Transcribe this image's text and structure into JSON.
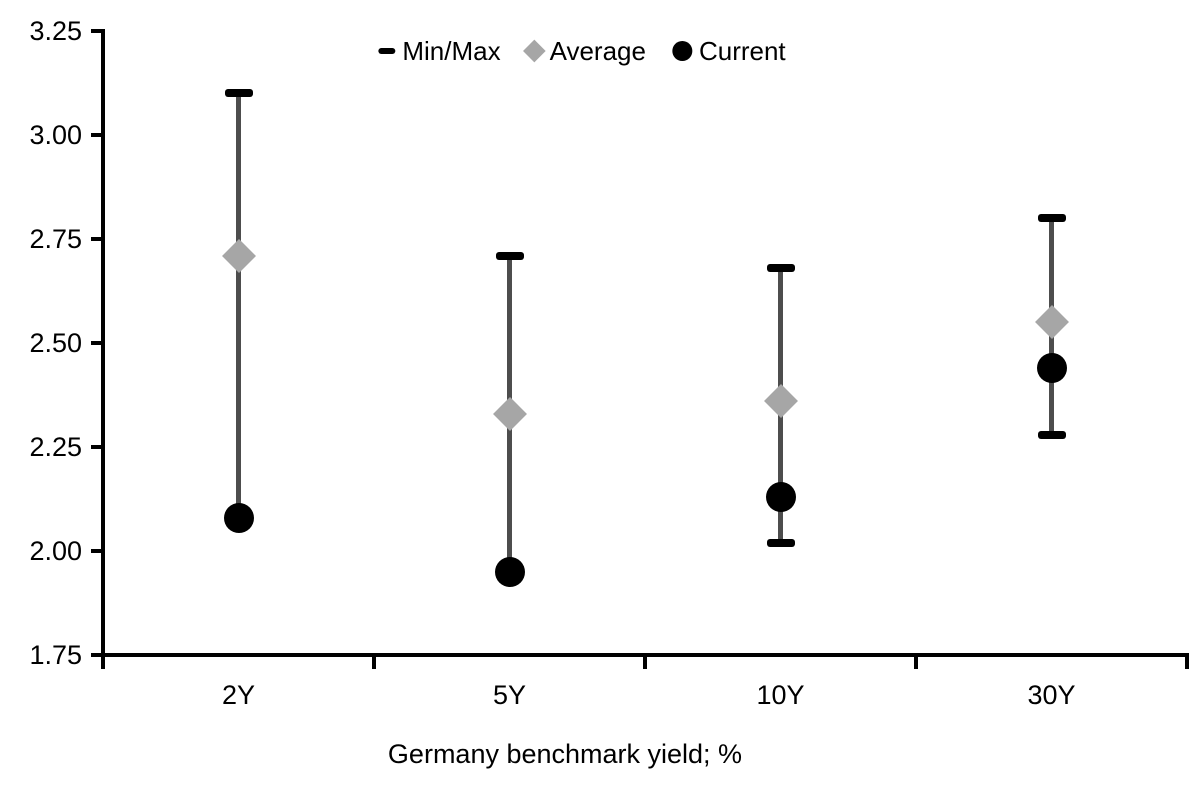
{
  "chart_data": {
    "type": "scatter",
    "title": "",
    "xlabel": "Germany benchmark yield; %",
    "ylabel": "",
    "categories": [
      "2Y",
      "5Y",
      "10Y",
      "30Y"
    ],
    "ylim": [
      1.75,
      3.25
    ],
    "ytick_step": 0.25,
    "yticks": [
      {
        "label": "3.25",
        "value": 3.25
      },
      {
        "label": "3.00",
        "value": 3.0
      },
      {
        "label": "2.75",
        "value": 2.75
      },
      {
        "label": "2.50",
        "value": 2.5
      },
      {
        "label": "2.25",
        "value": 2.25
      },
      {
        "label": "2.00",
        "value": 2.0
      },
      {
        "label": "1.75",
        "value": 1.75
      }
    ],
    "grid": false,
    "series": [
      {
        "name": "Min/Max",
        "type": "range",
        "max": [
          3.1,
          2.71,
          2.68,
          2.8
        ],
        "min": [
          2.08,
          1.95,
          2.02,
          2.28
        ],
        "min_cap_visible": [
          false,
          false,
          true,
          true
        ],
        "cap_color": "#000000",
        "rod_color": "#4D4D4D"
      },
      {
        "name": "Average",
        "type": "point",
        "marker": "diamond",
        "color": "#A6A6A6",
        "values": [
          2.71,
          2.33,
          2.36,
          2.55
        ]
      },
      {
        "name": "Current",
        "type": "point",
        "marker": "circle",
        "color": "#000000",
        "values": [
          2.08,
          1.95,
          2.13,
          2.44
        ]
      }
    ],
    "legend": {
      "position": "top",
      "entries": [
        {
          "label": "Min/Max",
          "marker": "dash",
          "color": "#000000"
        },
        {
          "label": "Average",
          "marker": "diamond",
          "color": "#A6A6A6"
        },
        {
          "label": "Current",
          "marker": "circle",
          "color": "#000000"
        }
      ]
    },
    "colors": {
      "axis": "#000000",
      "background": "#FFFFFF"
    }
  }
}
